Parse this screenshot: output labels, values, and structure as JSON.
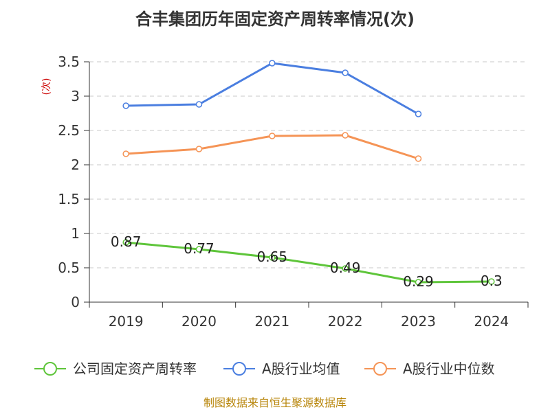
{
  "chart_data": {
    "type": "line",
    "title": "合丰集团历年固定资产周转率情况(次)",
    "ylabel": "(次)",
    "xlabel": "",
    "categories": [
      "2019",
      "2020",
      "2021",
      "2022",
      "2023",
      "2024"
    ],
    "ylim": [
      0,
      3.5
    ],
    "yticks": [
      "0",
      "0.5",
      "1",
      "1.5",
      "2",
      "2.5",
      "3",
      "3.5"
    ],
    "grid": true,
    "legend_position": "bottom",
    "series": [
      {
        "name": "公司固定资产周转率",
        "color": "#5ec53a",
        "values": [
          0.87,
          0.77,
          0.65,
          0.49,
          0.29,
          0.3
        ],
        "labels": [
          "0.87",
          "0.77",
          "0.65",
          "0.49",
          "0.29",
          "0.3"
        ]
      },
      {
        "name": "A股行业均值",
        "color": "#4a7ee0",
        "values": [
          2.86,
          2.88,
          3.48,
          3.34,
          2.74,
          null
        ]
      },
      {
        "name": "A股行业中位数",
        "color": "#f59456",
        "values": [
          2.16,
          2.23,
          2.42,
          2.43,
          2.09,
          null
        ]
      }
    ],
    "source": "制图数据来自恒生聚源数据库"
  }
}
